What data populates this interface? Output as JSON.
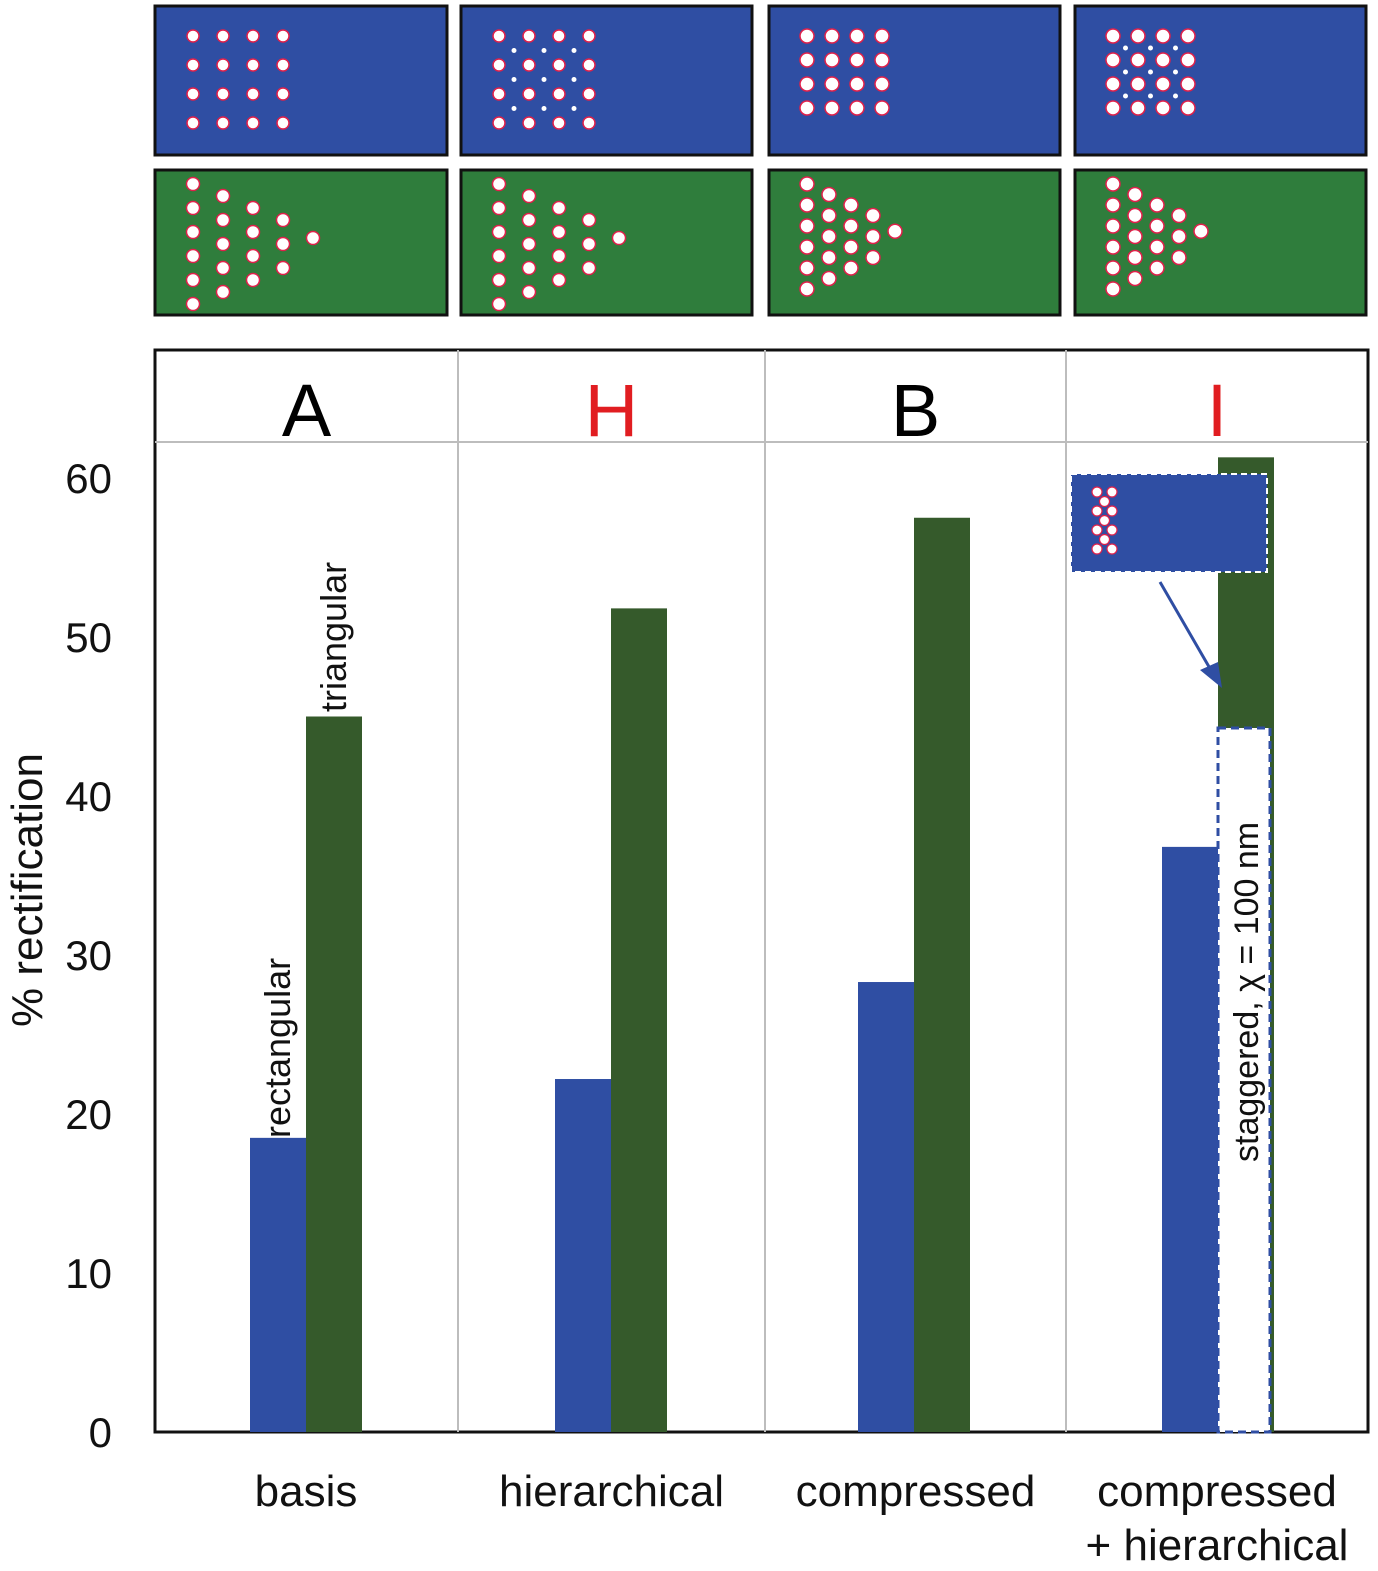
{
  "colors": {
    "blue": "#2f4ea3",
    "green": "#355a2b",
    "panel_blue": "#2f4ea3",
    "panel_green": "#2f7d3c",
    "red": "#e11d21",
    "black": "#000000",
    "grid": "#bdbdbd"
  },
  "chart_data": {
    "type": "bar",
    "ylabel": "% rectification",
    "ylim": [
      0,
      60
    ],
    "yticks": [
      0,
      10,
      20,
      30,
      40,
      50,
      60
    ],
    "categories": [
      "basis",
      "hierarchical",
      "compressed",
      "compressed\n+ hierarchical"
    ],
    "category_lines": [
      [
        "basis"
      ],
      [
        "hierarchical"
      ],
      [
        "compressed"
      ],
      [
        "compressed",
        "+ hierarchical"
      ]
    ],
    "headers": [
      {
        "letter": "A",
        "color": "black"
      },
      {
        "letter": "H",
        "color": "red"
      },
      {
        "letter": "B",
        "color": "black"
      },
      {
        "letter": "I",
        "color": "red"
      }
    ],
    "series": [
      {
        "name": "rectangular",
        "color": "blue",
        "values": [
          18.5,
          22.2,
          28.3,
          36.8
        ]
      },
      {
        "name": "triangular",
        "color": "green",
        "values": [
          45.0,
          51.8,
          57.5,
          61.3
        ]
      }
    ],
    "grid": false,
    "annotation": "staggered, χ = 100 nm"
  }
}
